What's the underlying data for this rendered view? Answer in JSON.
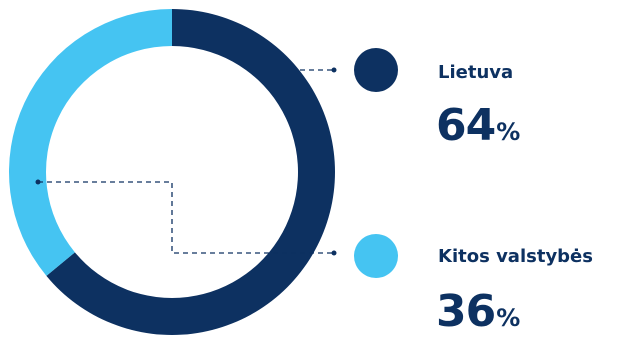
{
  "chart_data": {
    "type": "pie",
    "donut": true,
    "categories": [
      "Lietuva",
      "Kitos valstybės"
    ],
    "values": [
      64,
      36
    ],
    "unit": "%",
    "colors": [
      "#0d3161",
      "#45c4f2"
    ],
    "legend": [
      {
        "label": "Lietuva",
        "value": "64",
        "unit": "%"
      },
      {
        "label": "Kitos valstybės",
        "value": "36",
        "unit": "%"
      }
    ],
    "leader_lines": "dashed",
    "legend_position": "right"
  }
}
